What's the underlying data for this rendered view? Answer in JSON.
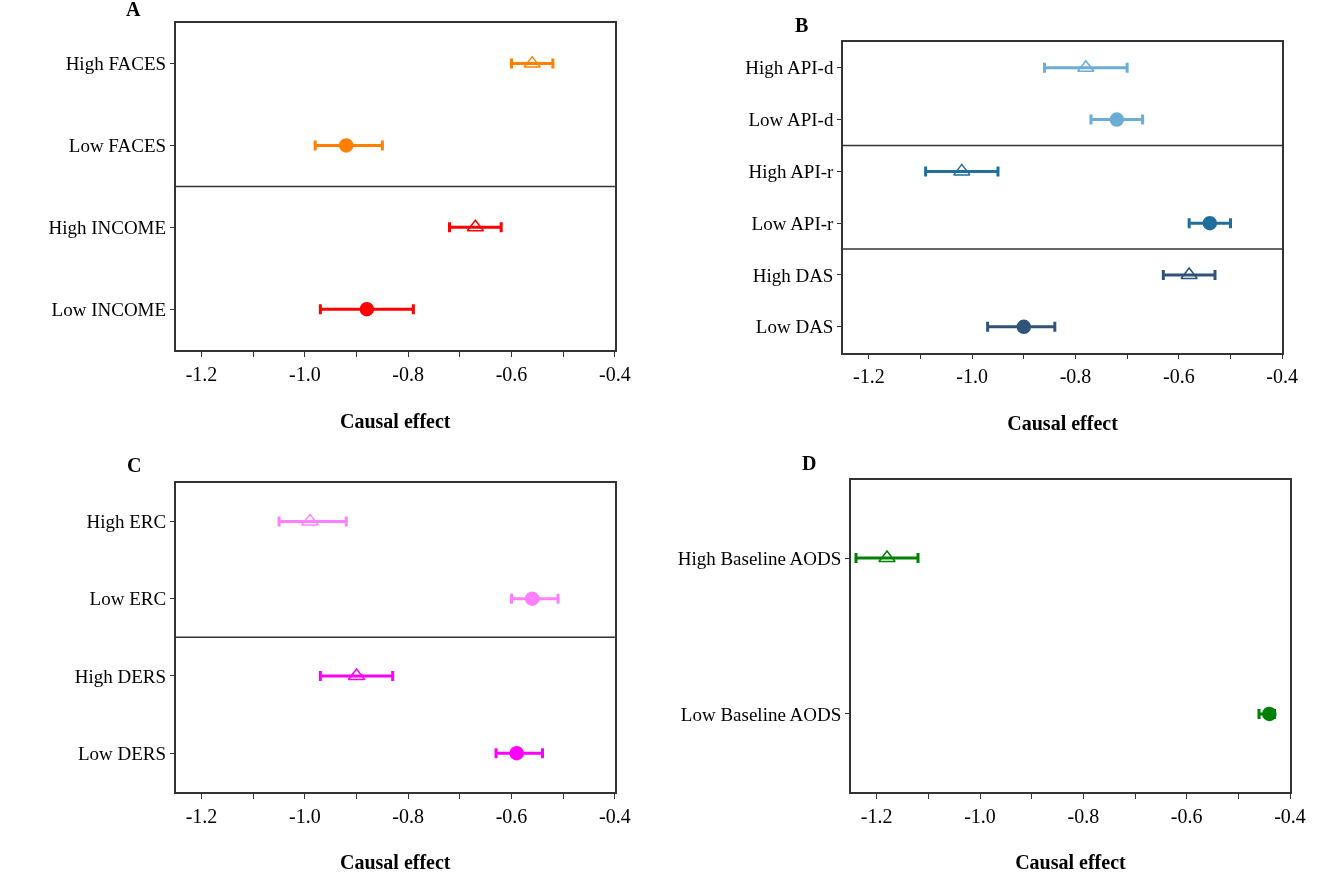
{
  "chart_data": [
    {
      "type": "scatter",
      "orientation": "horizontal",
      "title": "A",
      "xlabel": "Causal effect",
      "categories": [
        "High FACES",
        "Low FACES",
        "High INCOME",
        "Low INCOME"
      ],
      "series": [
        {
          "marker": "triangle",
          "colors": [
            "#ff8000",
            null,
            "#ff0000",
            null
          ],
          "values": [
            -0.56,
            null,
            -0.67,
            null
          ],
          "errors": [
            [
              -0.6,
              -0.52
            ],
            null,
            [
              -0.72,
              -0.62
            ],
            null
          ]
        },
        {
          "marker": "circle",
          "colors": [
            null,
            "#ff8000",
            null,
            "#ff0000"
          ],
          "values": [
            null,
            -0.92,
            null,
            -0.88
          ],
          "errors": [
            null,
            [
              -0.98,
              -0.85
            ],
            null,
            [
              -0.97,
              -0.79
            ]
          ]
        }
      ],
      "xlim": [
        -1.25,
        -0.4
      ],
      "xticks": [
        {
          "value": -1.2,
          "label": "-1.2"
        },
        {
          "value": -1.1,
          "label": null
        },
        {
          "value": -1.0,
          "label": "-1.0"
        },
        {
          "value": -0.9,
          "label": null
        },
        {
          "value": -0.8,
          "label": "-0.8"
        },
        {
          "value": -0.7,
          "label": null
        },
        {
          "value": -0.6,
          "label": "-0.6"
        },
        {
          "value": -0.5,
          "label": null
        },
        {
          "value": -0.4,
          "label": "-0.4"
        }
      ]
    },
    {
      "type": "scatter",
      "orientation": "horizontal",
      "title": "B",
      "xlabel": "Causal effect",
      "categories": [
        "High API-d",
        "Low API-d",
        "High API-r",
        "Low API-r",
        "High DAS",
        "Low DAS"
      ],
      "series": [
        {
          "marker": "triangle",
          "colors": [
            "#6badd6",
            null,
            "#1f6e9c",
            null,
            "#2f5478",
            null
          ],
          "values": [
            -0.78,
            null,
            -1.02,
            null,
            -0.58,
            null
          ],
          "errors": [
            [
              -0.86,
              -0.7
            ],
            null,
            [
              -1.09,
              -0.95
            ],
            null,
            [
              -0.63,
              -0.53
            ],
            null
          ]
        },
        {
          "marker": "circle",
          "colors": [
            null,
            "#6badd6",
            null,
            "#1f6e9c",
            null,
            "#2f5478"
          ],
          "values": [
            null,
            -0.72,
            null,
            -0.54,
            null,
            -0.9
          ],
          "errors": [
            null,
            [
              -0.77,
              -0.67
            ],
            null,
            [
              -0.58,
              -0.5
            ],
            null,
            [
              -0.97,
              -0.84
            ]
          ]
        }
      ],
      "xlim": [
        -1.25,
        -0.4
      ],
      "xticks": [
        {
          "value": -1.2,
          "label": "-1.2"
        },
        {
          "value": -1.1,
          "label": null
        },
        {
          "value": -1.0,
          "label": "-1.0"
        },
        {
          "value": -0.9,
          "label": null
        },
        {
          "value": -0.8,
          "label": "-0.8"
        },
        {
          "value": -0.7,
          "label": null
        },
        {
          "value": -0.6,
          "label": "-0.6"
        },
        {
          "value": -0.5,
          "label": null
        },
        {
          "value": -0.4,
          "label": "-0.4"
        }
      ]
    },
    {
      "type": "scatter",
      "orientation": "horizontal",
      "title": "C",
      "xlabel": "Causal effect",
      "categories": [
        "High ERC",
        "Low ERC",
        "High DERS",
        "Low DERS"
      ],
      "series": [
        {
          "marker": "triangle",
          "colors": [
            "#ff80ff",
            null,
            "#ff00ff",
            null
          ],
          "values": [
            -0.99,
            null,
            -0.9,
            null
          ],
          "errors": [
            [
              -1.05,
              -0.92
            ],
            null,
            [
              -0.97,
              -0.83
            ],
            null
          ]
        },
        {
          "marker": "circle",
          "colors": [
            null,
            "#ff80ff",
            null,
            "#ff00ff"
          ],
          "values": [
            null,
            -0.56,
            null,
            -0.59
          ],
          "errors": [
            null,
            [
              -0.6,
              -0.51
            ],
            null,
            [
              -0.63,
              -0.54
            ]
          ]
        }
      ],
      "xlim": [
        -1.25,
        -0.4
      ],
      "xticks": [
        {
          "value": -1.2,
          "label": "-1.2"
        },
        {
          "value": -1.1,
          "label": null
        },
        {
          "value": -1.0,
          "label": "-1.0"
        },
        {
          "value": -0.9,
          "label": null
        },
        {
          "value": -0.8,
          "label": "-0.8"
        },
        {
          "value": -0.7,
          "label": null
        },
        {
          "value": -0.6,
          "label": "-0.6"
        },
        {
          "value": -0.5,
          "label": null
        },
        {
          "value": -0.4,
          "label": "-0.4"
        }
      ]
    },
    {
      "type": "scatter",
      "orientation": "horizontal",
      "title": "D",
      "xlabel": "Causal effect",
      "categories": [
        "High Baseline AODS",
        "Low Baseline AODS"
      ],
      "series": [
        {
          "marker": "triangle",
          "colors": [
            "#008000",
            null
          ],
          "values": [
            -1.18,
            null
          ],
          "errors": [
            [
              -1.24,
              -1.12
            ],
            null
          ]
        },
        {
          "marker": "circle",
          "colors": [
            null,
            "#008000"
          ],
          "values": [
            null,
            -0.44
          ],
          "errors": [
            null,
            [
              -0.46,
              -0.43
            ]
          ]
        }
      ],
      "xlim": [
        -1.25,
        -0.4
      ],
      "xticks": [
        {
          "value": -1.2,
          "label": "-1.2"
        },
        {
          "value": -1.1,
          "label": null
        },
        {
          "value": -1.0,
          "label": "-1.0"
        },
        {
          "value": -0.9,
          "label": null
        },
        {
          "value": -0.8,
          "label": "-0.8"
        },
        {
          "value": -0.7,
          "label": null
        },
        {
          "value": -0.6,
          "label": "-0.6"
        },
        {
          "value": -0.5,
          "label": null
        },
        {
          "value": -0.4,
          "label": "-0.4"
        }
      ]
    }
  ]
}
